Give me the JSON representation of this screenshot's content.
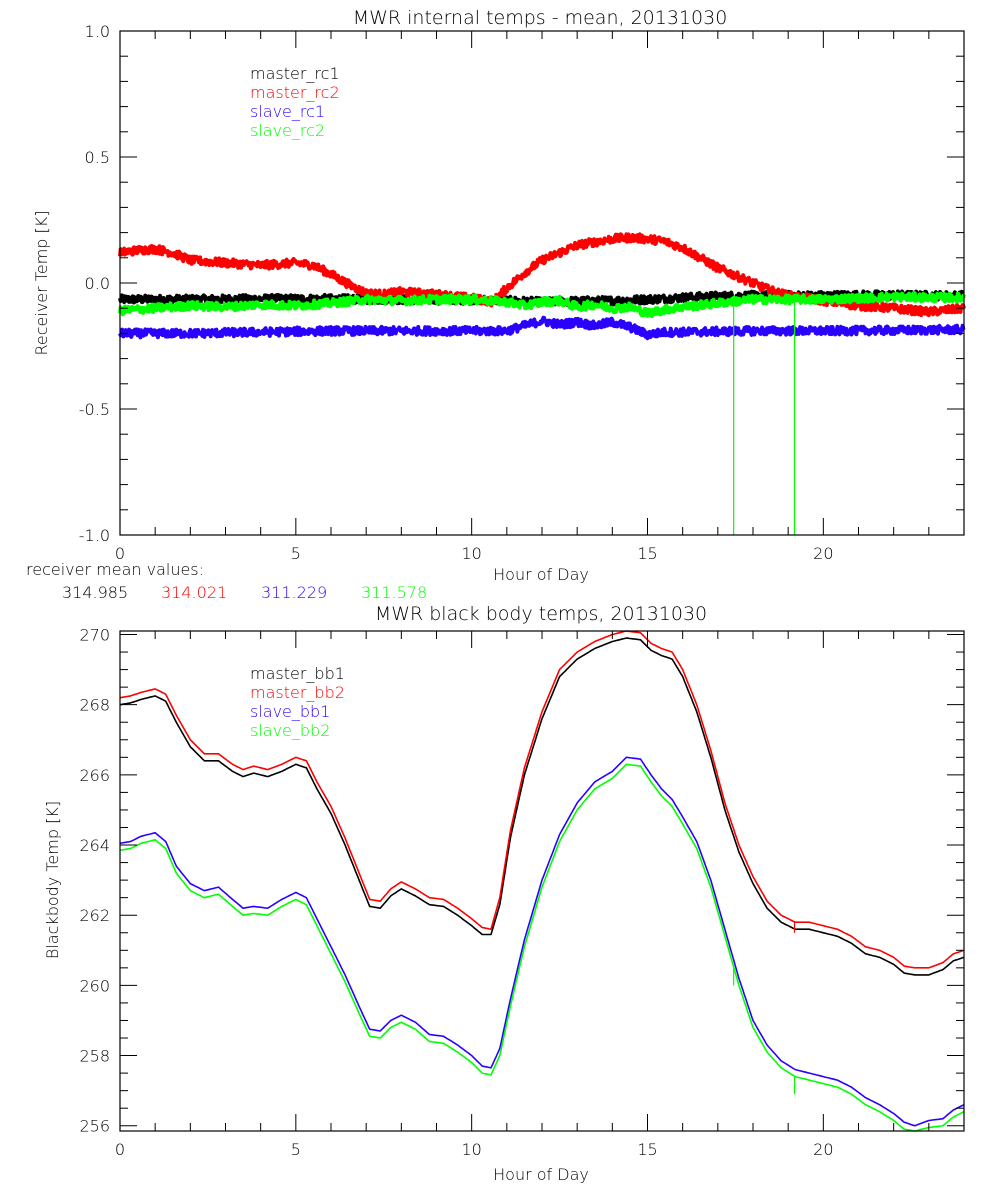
{
  "colors": {
    "black": "#000000",
    "red": "#ff0000",
    "blue": "#2a00ff",
    "green": "#00ff00"
  },
  "receiver_mean": {
    "label": "receiver mean values:",
    "values": [
      {
        "text": "314.985",
        "color": "#000000"
      },
      {
        "text": "314.021",
        "color": "#ff0000"
      },
      {
        "text": "311.229",
        "color": "#2a00ff"
      },
      {
        "text": "311.578",
        "color": "#00ff00"
      }
    ]
  },
  "chart_data": [
    {
      "type": "line",
      "title": "MWR internal temps - mean, 20131030",
      "xlabel": "Hour of Day",
      "ylabel": "Receiver Temp [K]",
      "xlim": [
        0,
        24
      ],
      "ylim": [
        -1.0,
        1.0
      ],
      "xticks": [
        0,
        5,
        10,
        15,
        20
      ],
      "xtick_labels": [
        "0",
        "5",
        "10",
        "15",
        "20"
      ],
      "x_minor_step": 1,
      "yticks": [
        -1.0,
        -0.5,
        0.0,
        0.5,
        1.0
      ],
      "ytick_labels": [
        "-1.0",
        "-0.5",
        "0.0",
        "0.5",
        "1.0"
      ],
      "y_minor_step": 0.1,
      "grid": false,
      "legend_position": "top-left",
      "noisy": true,
      "series": [
        {
          "name": "master_rc1",
          "color": "#000000",
          "x": [
            0,
            2,
            4,
            6,
            8,
            10,
            11,
            12,
            13,
            14,
            15,
            16,
            17,
            18,
            19,
            20,
            21,
            22,
            23,
            24
          ],
          "y": [
            -0.065,
            -0.065,
            -0.063,
            -0.063,
            -0.066,
            -0.066,
            -0.07,
            -0.075,
            -0.072,
            -0.07,
            -0.065,
            -0.058,
            -0.052,
            -0.05,
            -0.05,
            -0.05,
            -0.048,
            -0.048,
            -0.05,
            -0.05
          ]
        },
        {
          "name": "master_rc2",
          "color": "#ff0000",
          "x": [
            0,
            0.5,
            1,
            1.5,
            2,
            3,
            4,
            4.5,
            5,
            5.5,
            6,
            6.5,
            7,
            7.5,
            8,
            9,
            10,
            10.6,
            11,
            11.5,
            12,
            13,
            14,
            14.5,
            15,
            15.5,
            16,
            16.5,
            17,
            17.5,
            18,
            18.5,
            19,
            20,
            21,
            22,
            23,
            24
          ],
          "y": [
            0.12,
            0.13,
            0.135,
            0.12,
            0.09,
            0.08,
            0.07,
            0.075,
            0.08,
            0.07,
            0.035,
            -0.005,
            -0.04,
            -0.045,
            -0.035,
            -0.045,
            -0.06,
            -0.075,
            -0.02,
            0.04,
            0.09,
            0.15,
            0.175,
            0.18,
            0.175,
            0.165,
            0.14,
            0.1,
            0.06,
            0.03,
            0.0,
            -0.03,
            -0.05,
            -0.07,
            -0.09,
            -0.1,
            -0.115,
            -0.1
          ]
        },
        {
          "name": "slave_rc1",
          "color": "#2a00ff",
          "x": [
            0,
            2,
            4,
            6,
            8,
            10,
            11,
            11.5,
            12,
            12.5,
            13,
            13.5,
            14,
            14.5,
            15,
            15.5,
            16,
            18,
            20,
            22,
            24
          ],
          "y": [
            -0.2,
            -0.2,
            -0.195,
            -0.19,
            -0.19,
            -0.19,
            -0.19,
            -0.17,
            -0.15,
            -0.165,
            -0.155,
            -0.17,
            -0.155,
            -0.175,
            -0.205,
            -0.195,
            -0.195,
            -0.19,
            -0.19,
            -0.188,
            -0.185
          ]
        },
        {
          "name": "slave_rc2",
          "color": "#00ff00",
          "x": [
            0,
            1,
            2,
            3,
            4,
            5,
            6,
            7,
            8,
            9,
            10,
            11,
            11.5,
            12,
            12.5,
            13,
            13.5,
            14,
            14.5,
            15,
            15.5,
            16,
            17,
            18,
            19,
            20,
            21,
            22,
            23,
            24
          ],
          "y": [
            -0.11,
            -0.1,
            -0.09,
            -0.095,
            -0.085,
            -0.09,
            -0.08,
            -0.065,
            -0.07,
            -0.065,
            -0.065,
            -0.075,
            -0.09,
            -0.075,
            -0.07,
            -0.095,
            -0.085,
            -0.1,
            -0.095,
            -0.12,
            -0.105,
            -0.095,
            -0.08,
            -0.065,
            -0.065,
            -0.065,
            -0.06,
            -0.055,
            -0.058,
            -0.058
          ],
          "spikes": [
            {
              "x": 17.45,
              "y_to": -1.0
            },
            {
              "x": 19.18,
              "y_to": -1.0
            }
          ]
        }
      ]
    },
    {
      "type": "line",
      "title": "MWR black body temps, 20131030",
      "xlabel": "Hour of Day",
      "ylabel": "Blackbody Temp [K]",
      "xlim": [
        0,
        24
      ],
      "ylim": [
        255.85,
        270.1
      ],
      "xticks": [
        0,
        5,
        10,
        15,
        20
      ],
      "xtick_labels": [
        "0",
        "5",
        "10",
        "15",
        "20"
      ],
      "x_minor_step": 1,
      "yticks": [
        256,
        258,
        260,
        262,
        264,
        266,
        268,
        270
      ],
      "ytick_labels": [
        "256",
        "258",
        "260",
        "262",
        "264",
        "266",
        "268",
        "270"
      ],
      "y_minor_step": 0.5,
      "grid": false,
      "legend_position": "top-left",
      "noisy": false,
      "series": [
        {
          "name": "master_bb1",
          "color": "#000000",
          "x": [
            0,
            0.3,
            0.6,
            1.0,
            1.3,
            1.6,
            2.0,
            2.4,
            2.8,
            3.2,
            3.5,
            3.8,
            4.2,
            4.6,
            5.0,
            5.3,
            5.6,
            6.0,
            6.4,
            6.8,
            7.1,
            7.4,
            7.7,
            8.0,
            8.4,
            8.8,
            9.2,
            9.6,
            10.0,
            10.3,
            10.55,
            10.8,
            11.1,
            11.5,
            12.0,
            12.5,
            13.0,
            13.5,
            14.0,
            14.4,
            14.8,
            15.1,
            15.4,
            15.7,
            16.0,
            16.4,
            16.8,
            17.2,
            17.6,
            18.0,
            18.4,
            18.8,
            19.2,
            19.6,
            20.0,
            20.4,
            20.8,
            21.2,
            21.6,
            22.0,
            22.3,
            22.6,
            23.0,
            23.4,
            23.7,
            24.0
          ],
          "y": [
            268.0,
            268.05,
            268.15,
            268.25,
            268.1,
            267.5,
            266.8,
            266.4,
            266.4,
            266.1,
            265.95,
            266.05,
            265.95,
            266.1,
            266.3,
            266.2,
            265.6,
            264.9,
            264.0,
            263.0,
            262.25,
            262.2,
            262.55,
            262.75,
            262.55,
            262.3,
            262.25,
            262.0,
            261.7,
            261.45,
            261.45,
            262.3,
            264.2,
            266.0,
            267.6,
            268.8,
            269.3,
            269.6,
            269.8,
            269.9,
            269.85,
            269.55,
            269.4,
            269.3,
            268.8,
            267.8,
            266.5,
            265.0,
            263.8,
            262.9,
            262.2,
            261.8,
            261.6,
            261.6,
            261.5,
            261.4,
            261.2,
            260.9,
            260.8,
            260.6,
            260.35,
            260.3,
            260.3,
            260.45,
            260.7,
            260.8
          ]
        },
        {
          "name": "master_bb2",
          "color": "#ff0000",
          "x": [
            0,
            0.3,
            0.6,
            1.0,
            1.3,
            1.6,
            2.0,
            2.4,
            2.8,
            3.2,
            3.5,
            3.8,
            4.2,
            4.6,
            5.0,
            5.3,
            5.6,
            6.0,
            6.4,
            6.8,
            7.1,
            7.4,
            7.7,
            8.0,
            8.4,
            8.8,
            9.2,
            9.6,
            10.0,
            10.3,
            10.55,
            10.8,
            11.1,
            11.5,
            12.0,
            12.5,
            13.0,
            13.5,
            14.0,
            14.4,
            14.8,
            15.1,
            15.4,
            15.7,
            16.0,
            16.4,
            16.8,
            17.2,
            17.6,
            18.0,
            18.4,
            18.8,
            19.2,
            19.6,
            20.0,
            20.4,
            20.8,
            21.2,
            21.6,
            22.0,
            22.3,
            22.6,
            23.0,
            23.4,
            23.7,
            24.0
          ],
          "y": [
            268.2,
            268.25,
            268.35,
            268.45,
            268.3,
            267.7,
            267.0,
            266.6,
            266.6,
            266.3,
            266.15,
            266.25,
            266.15,
            266.3,
            266.5,
            266.4,
            265.8,
            265.1,
            264.2,
            263.2,
            262.45,
            262.4,
            262.75,
            262.95,
            262.75,
            262.5,
            262.45,
            262.2,
            261.9,
            261.65,
            261.6,
            262.5,
            264.4,
            266.2,
            267.8,
            269.0,
            269.5,
            269.8,
            270.0,
            270.1,
            270.05,
            269.75,
            269.6,
            269.5,
            269.0,
            268.0,
            266.7,
            265.2,
            264.0,
            263.1,
            262.4,
            262.0,
            261.8,
            261.8,
            261.7,
            261.6,
            261.4,
            261.1,
            261.0,
            260.8,
            260.55,
            260.5,
            260.5,
            260.65,
            260.9,
            261.0
          ],
          "spikes": [
            {
              "x": 19.18,
              "y_to": 261.5
            }
          ]
        },
        {
          "name": "slave_bb1",
          "color": "#2a00ff",
          "x": [
            0,
            0.3,
            0.6,
            1.0,
            1.3,
            1.6,
            2.0,
            2.4,
            2.8,
            3.2,
            3.5,
            3.8,
            4.2,
            4.6,
            5.0,
            5.3,
            5.6,
            6.0,
            6.4,
            6.8,
            7.1,
            7.4,
            7.7,
            8.0,
            8.4,
            8.8,
            9.2,
            9.6,
            10.0,
            10.3,
            10.55,
            10.8,
            11.1,
            11.5,
            12.0,
            12.5,
            13.0,
            13.5,
            14.0,
            14.4,
            14.8,
            15.1,
            15.4,
            15.7,
            16.0,
            16.4,
            16.8,
            17.2,
            17.6,
            18.0,
            18.4,
            18.8,
            19.2,
            19.6,
            20.0,
            20.4,
            20.8,
            21.2,
            21.6,
            22.0,
            22.3,
            22.6,
            23.0,
            23.4,
            23.7,
            24.0
          ],
          "y": [
            264.05,
            264.1,
            264.25,
            264.35,
            264.1,
            263.4,
            262.9,
            262.7,
            262.8,
            262.45,
            262.2,
            262.25,
            262.2,
            262.45,
            262.65,
            262.5,
            261.9,
            261.1,
            260.3,
            259.4,
            258.75,
            258.7,
            259.0,
            259.15,
            258.95,
            258.6,
            258.55,
            258.3,
            258.0,
            257.7,
            257.65,
            258.2,
            259.6,
            261.3,
            263.0,
            264.3,
            265.2,
            265.8,
            266.1,
            266.5,
            266.45,
            266.0,
            265.6,
            265.3,
            264.8,
            264.1,
            263.0,
            261.6,
            260.2,
            259.0,
            258.3,
            257.85,
            257.6,
            257.5,
            257.4,
            257.3,
            257.1,
            256.8,
            256.6,
            256.35,
            256.1,
            256.0,
            256.15,
            256.2,
            256.45,
            256.6
          ]
        },
        {
          "name": "slave_bb2",
          "color": "#00ff00",
          "x": [
            0,
            0.3,
            0.6,
            1.0,
            1.3,
            1.6,
            2.0,
            2.4,
            2.8,
            3.2,
            3.5,
            3.8,
            4.2,
            4.6,
            5.0,
            5.3,
            5.6,
            6.0,
            6.4,
            6.8,
            7.1,
            7.4,
            7.7,
            8.0,
            8.4,
            8.8,
            9.2,
            9.6,
            10.0,
            10.3,
            10.55,
            10.8,
            11.1,
            11.5,
            12.0,
            12.5,
            13.0,
            13.5,
            14.0,
            14.4,
            14.8,
            15.1,
            15.4,
            15.7,
            16.0,
            16.4,
            16.8,
            17.2,
            17.6,
            18.0,
            18.4,
            18.8,
            19.2,
            19.6,
            20.0,
            20.4,
            20.8,
            21.2,
            21.6,
            22.0,
            22.3,
            22.6,
            23.0,
            23.4,
            23.7,
            24.0
          ],
          "y": [
            263.85,
            263.9,
            264.05,
            264.15,
            263.9,
            263.2,
            262.7,
            262.5,
            262.6,
            262.25,
            262.0,
            262.05,
            262.0,
            262.25,
            262.45,
            262.3,
            261.7,
            260.9,
            260.1,
            259.2,
            258.55,
            258.5,
            258.8,
            258.95,
            258.75,
            258.4,
            258.35,
            258.1,
            257.8,
            257.5,
            257.45,
            258.0,
            259.4,
            261.1,
            262.8,
            264.1,
            265.0,
            265.6,
            265.9,
            266.3,
            266.25,
            265.8,
            265.4,
            265.1,
            264.6,
            263.9,
            262.8,
            261.4,
            260.0,
            258.8,
            258.1,
            257.65,
            257.4,
            257.3,
            257.2,
            257.1,
            256.9,
            256.6,
            256.4,
            256.15,
            255.9,
            255.85,
            255.95,
            256.0,
            256.25,
            256.4
          ],
          "spikes": [
            {
              "x": 17.45,
              "y_to": 260.0
            },
            {
              "x": 19.18,
              "y_to": 256.9
            }
          ]
        }
      ]
    }
  ]
}
